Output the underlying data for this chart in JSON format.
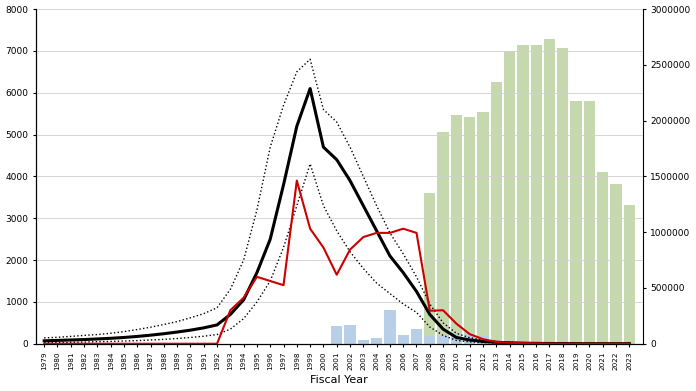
{
  "years": [
    1979,
    1980,
    1981,
    1982,
    1983,
    1984,
    1985,
    1986,
    1987,
    1988,
    1989,
    1990,
    1991,
    1992,
    1993,
    1994,
    1995,
    1996,
    1997,
    1998,
    1999,
    2000,
    2001,
    2002,
    2003,
    2004,
    2005,
    2006,
    2007,
    2008,
    2009,
    2010,
    2011,
    2012,
    2013,
    2014,
    2015,
    2016,
    2017,
    2018,
    2019,
    2020,
    2021,
    2022,
    2023
  ],
  "population_central": [
    70,
    80,
    90,
    100,
    115,
    130,
    150,
    175,
    205,
    240,
    280,
    325,
    380,
    450,
    700,
    1050,
    1700,
    2500,
    3800,
    5200,
    6100,
    4700,
    4400,
    3900,
    3300,
    2700,
    2100,
    1700,
    1250,
    700,
    350,
    150,
    90,
    55,
    35,
    22,
    14,
    9,
    6,
    4,
    3,
    2,
    2,
    2,
    2
  ],
  "population_upper": [
    140,
    155,
    175,
    200,
    220,
    250,
    290,
    340,
    395,
    460,
    530,
    620,
    720,
    860,
    1300,
    2000,
    3200,
    4700,
    5700,
    6500,
    6800,
    5600,
    5300,
    4700,
    4000,
    3300,
    2650,
    2150,
    1600,
    950,
    500,
    250,
    145,
    90,
    55,
    38,
    28,
    18,
    12,
    8,
    6,
    4,
    4,
    3,
    3
  ],
  "population_lower": [
    25,
    30,
    35,
    40,
    50,
    55,
    65,
    75,
    90,
    105,
    125,
    150,
    180,
    220,
    350,
    600,
    1000,
    1500,
    2300,
    3300,
    4300,
    3300,
    2700,
    2200,
    1800,
    1450,
    1200,
    950,
    750,
    400,
    200,
    80,
    45,
    28,
    18,
    11,
    7,
    5,
    3,
    2,
    2,
    1,
    1,
    1,
    1
  ],
  "catch_line": [
    0,
    0,
    0,
    0,
    0,
    0,
    0,
    0,
    0,
    0,
    0,
    0,
    0,
    0,
    800,
    1100,
    1600,
    1500,
    1400,
    3900,
    2750,
    2300,
    1650,
    2250,
    2550,
    2650,
    2650,
    2750,
    2650,
    790,
    800,
    480,
    230,
    110,
    45,
    22,
    16,
    10,
    5,
    3,
    2,
    1,
    1,
    1,
    1
  ],
  "bar_blue_years": [
    2001,
    2002,
    2003,
    2004,
    2005,
    2006,
    2007,
    2008,
    2009,
    2010,
    2011,
    2012,
    2013
  ],
  "bar_blue_values": [
    160000,
    165000,
    30000,
    55000,
    300000,
    80000,
    135000,
    65000,
    70000,
    90000,
    90000,
    65000,
    20000
  ],
  "bar_green_years": [
    2008,
    2009,
    2010,
    2011,
    2012,
    2013,
    2014,
    2015,
    2016,
    2017,
    2018,
    2019,
    2020,
    2021,
    2022,
    2023
  ],
  "bar_green_values": [
    1350000,
    1900000,
    2050000,
    2030000,
    2080000,
    2350000,
    2620000,
    2680000,
    2680000,
    2730000,
    2650000,
    2180000,
    2180000,
    1540000,
    1430000,
    1240000
  ],
  "xlabel": "Fiscal Year",
  "ylim_left": [
    0,
    8000
  ],
  "ylim_right": [
    0,
    3000000
  ],
  "background_color": "#ffffff",
  "bar_blue_color": "#b8cfe8",
  "bar_green_color": "#c6d9ae",
  "line_population_color": "#000000",
  "line_catch_color": "#cc0000",
  "line_dotted_color": "#000000",
  "grid_color": "#d0d0d0"
}
